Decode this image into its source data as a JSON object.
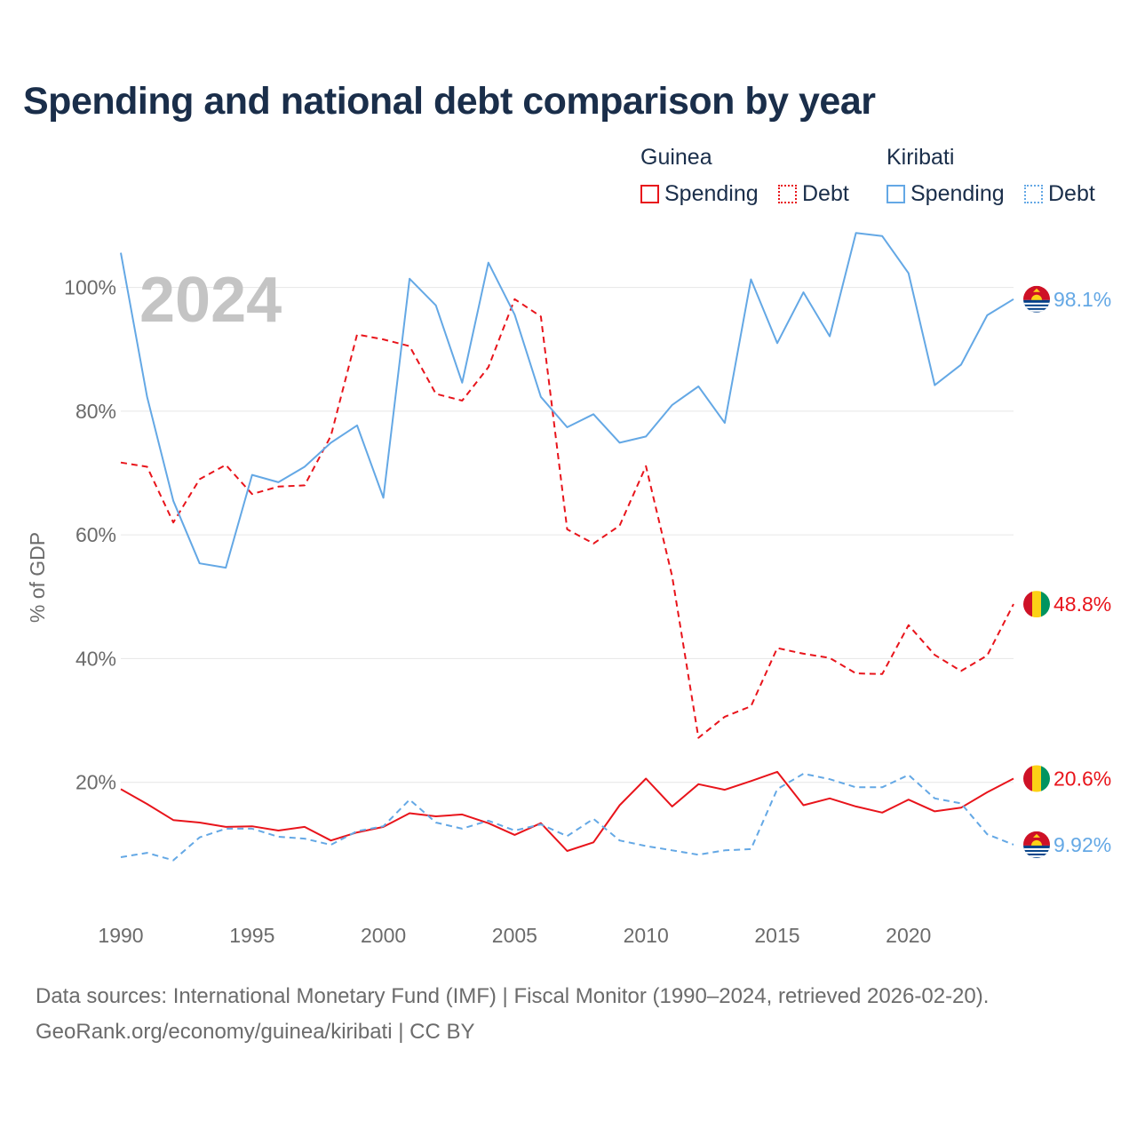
{
  "title": "Spending and national debt comparison by year",
  "legend": {
    "groups": [
      {
        "country": "Guinea",
        "items": [
          "Spending",
          "Debt"
        ]
      },
      {
        "country": "Kiribati",
        "items": [
          "Spending",
          "Debt"
        ]
      }
    ]
  },
  "colors": {
    "guinea": "#e8141b",
    "kiribati": "#64a8e5",
    "grid": "#e6e6e6",
    "axis_text": "#6b6b6b",
    "year_watermark": "#c4c4c4"
  },
  "footer": {
    "line1": "Data sources: International Monetary Fund (IMF) | Fiscal Monitor (1990–2024, retrieved 2026-02-20).",
    "line2": "GeoRank.org/economy/guinea/kiribati | CC BY"
  },
  "chart_data": {
    "type": "line",
    "title": "Spending and national debt comparison by year",
    "year_label": "2024",
    "xlabel": "",
    "ylabel": "% of GDP",
    "xlim": [
      1990,
      2024
    ],
    "ylim": [
      0,
      112
    ],
    "x_ticks": [
      1990,
      1995,
      2000,
      2005,
      2010,
      2015,
      2020
    ],
    "y_ticks": [
      20,
      40,
      60,
      80,
      100
    ],
    "y_tick_labels": [
      "20%",
      "40%",
      "60%",
      "80%",
      "100%"
    ],
    "x": [
      1990,
      1991,
      1992,
      1993,
      1994,
      1995,
      1996,
      1997,
      1998,
      1999,
      2000,
      2001,
      2002,
      2003,
      2004,
      2005,
      2006,
      2007,
      2008,
      2009,
      2010,
      2011,
      2012,
      2013,
      2014,
      2015,
      2016,
      2017,
      2018,
      2019,
      2020,
      2021,
      2022,
      2023,
      2024
    ],
    "series": [
      {
        "name": "Guinea Spending",
        "country": "Guinea",
        "measure": "Spending",
        "style": "solid",
        "color": "#e8141b",
        "end_label": "20.6%",
        "values": [
          18.9,
          16.5,
          13.9,
          13.5,
          12.8,
          12.9,
          12.2,
          12.8,
          10.6,
          11.9,
          12.8,
          15.0,
          14.5,
          14.8,
          13.4,
          11.5,
          13.4,
          8.9,
          10.3,
          16.3,
          20.6,
          16.1,
          19.7,
          18.8,
          20.2,
          21.7,
          16.3,
          17.4,
          16.1,
          15.1,
          17.2,
          15.3,
          15.9,
          18.4,
          20.6
        ]
      },
      {
        "name": "Guinea Debt",
        "country": "Guinea",
        "measure": "Debt",
        "style": "dashed",
        "color": "#e8141b",
        "end_label": "48.8%",
        "values": [
          71.7,
          71.0,
          62.0,
          69.0,
          71.3,
          66.6,
          67.8,
          68.0,
          76.0,
          92.4,
          91.6,
          90.5,
          82.8,
          81.7,
          87.1,
          98.1,
          95.3,
          60.9,
          58.6,
          61.5,
          71.1,
          53.3,
          27.2,
          30.6,
          32.3,
          41.7,
          40.8,
          40.1,
          37.6,
          37.5,
          45.4,
          40.6,
          38.0,
          40.5,
          48.8
        ]
      },
      {
        "name": "Kiribati Spending",
        "country": "Kiribati",
        "measure": "Spending",
        "style": "solid",
        "color": "#64a8e5",
        "end_label": "98.1%",
        "values": [
          105.6,
          82.3,
          65.5,
          55.4,
          54.7,
          69.7,
          68.5,
          71.0,
          74.9,
          77.7,
          66.0,
          101.4,
          97.1,
          84.6,
          104.0,
          95.6,
          82.3,
          77.4,
          79.5,
          74.9,
          75.9,
          81.0,
          84.0,
          78.1,
          101.3,
          91.0,
          99.2,
          92.1,
          108.8,
          108.3,
          102.3,
          84.2,
          87.5,
          95.5,
          98.1
        ]
      },
      {
        "name": "Kiribati Debt",
        "country": "Kiribati",
        "measure": "Debt",
        "style": "dashed",
        "color": "#64a8e5",
        "end_label": "9.92%",
        "values": [
          7.9,
          8.6,
          7.4,
          11.1,
          12.5,
          12.5,
          11.2,
          10.9,
          9.9,
          12.1,
          12.9,
          17.2,
          13.5,
          12.5,
          13.8,
          12.2,
          13.2,
          11.3,
          14.1,
          10.6,
          9.7,
          9.0,
          8.3,
          9.0,
          9.2,
          18.9,
          21.4,
          20.5,
          19.2,
          19.2,
          21.2,
          17.4,
          16.6,
          11.6,
          9.92
        ]
      }
    ]
  }
}
